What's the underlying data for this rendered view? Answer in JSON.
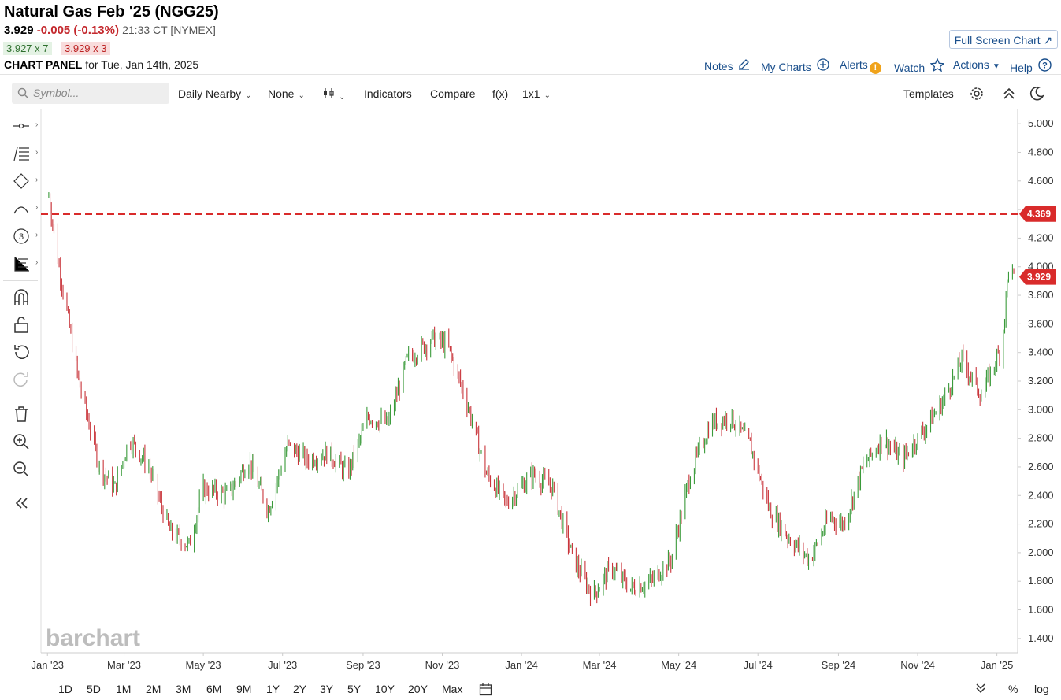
{
  "header": {
    "title": "Natural Gas Feb '25 (NGG25)",
    "last": "3.929",
    "change": "-0.005 (-0.13%)",
    "time": "21:33 CT [NYMEX]",
    "bid": "3.927 x 7",
    "ask": "3.929 x 3",
    "panel_label": "CHART PANEL",
    "panel_date": "for Tue, Jan 14th, 2025",
    "fullscreen": "Full Screen Chart",
    "links": {
      "notes": "Notes",
      "mycharts": "My Charts",
      "alerts": "Alerts",
      "watch": "Watch",
      "actions": "Actions",
      "help": "Help"
    }
  },
  "toolbar": {
    "symbol_placeholder": "Symbol...",
    "period": "Daily Nearby",
    "overlay": "None",
    "indicators": "Indicators",
    "compare": "Compare",
    "fx": "f(x)",
    "layout": "1x1",
    "templates": "Templates"
  },
  "ranges": [
    "1D",
    "5D",
    "1M",
    "2M",
    "3M",
    "6M",
    "9M",
    "1Y",
    "2Y",
    "3Y",
    "5Y",
    "10Y",
    "20Y",
    "Max"
  ],
  "bottom_right": {
    "percent": "%",
    "log": "log"
  },
  "colors": {
    "up": "#3a9a3a",
    "down": "#c9353b",
    "line": "#d92b2b",
    "link": "#1a4f8c"
  },
  "icons": [
    "search-icon",
    "chevron-down-icon",
    "candles-icon",
    "gear-icon",
    "collapse-icon",
    "moon-icon",
    "calendar-icon",
    "magnet-icon",
    "lock-icon",
    "undo-icon",
    "redo-icon",
    "trash-icon",
    "zoom-in-icon",
    "zoom-out-icon",
    "double-left-icon"
  ],
  "chart_data": {
    "type": "line",
    "ylim": [
      1.3,
      5.1
    ],
    "yticks": [
      "5.000",
      "4.800",
      "4.600",
      "4.400",
      "4.200",
      "4.000",
      "3.800",
      "3.600",
      "3.400",
      "3.200",
      "3.000",
      "2.800",
      "2.600",
      "2.400",
      "2.200",
      "2.000",
      "1.800",
      "1.600",
      "1.400"
    ],
    "xticks": [
      "Jan '23",
      "Mar '23",
      "May '23",
      "Jul '23",
      "Sep '23",
      "Nov '23",
      "Jan '24",
      "Mar '24",
      "May '24",
      "Jul '24",
      "Sep '24",
      "Nov '24",
      "Jan '25"
    ],
    "watermark": "barchart",
    "hline": {
      "value": 4.369,
      "label": "4.369"
    },
    "last_label": "3.929",
    "series": [
      {
        "x": [
          "2023-01-01",
          "2023-01-10",
          "2023-01-25",
          "2023-02-10",
          "2023-02-22",
          "2023-03-05",
          "2023-03-20",
          "2023-04-05",
          "2023-04-20",
          "2023-05-01",
          "2023-05-20",
          "2023-06-05",
          "2023-06-20",
          "2023-07-05",
          "2023-07-20",
          "2023-08-05",
          "2023-08-20",
          "2023-09-05",
          "2023-09-20",
          "2023-10-05",
          "2023-10-25",
          "2023-11-05",
          "2023-11-20",
          "2023-12-05",
          "2023-12-20",
          "2024-01-10",
          "2024-01-25",
          "2024-02-10",
          "2024-02-25",
          "2024-03-10",
          "2024-03-25",
          "2024-04-10",
          "2024-04-25",
          "2024-05-10",
          "2024-05-25",
          "2024-06-10",
          "2024-06-25",
          "2024-07-10",
          "2024-07-25",
          "2024-08-10",
          "2024-08-25",
          "2024-09-05",
          "2024-09-20",
          "2024-10-05",
          "2024-10-20",
          "2024-11-05",
          "2024-11-20",
          "2024-12-05",
          "2024-12-20",
          "2025-01-05",
          "2025-01-10",
          "2025-01-14"
        ],
        "values": [
          4.55,
          4.0,
          3.2,
          2.6,
          2.45,
          2.8,
          2.6,
          2.15,
          2.05,
          2.45,
          2.4,
          2.65,
          2.3,
          2.75,
          2.65,
          2.7,
          2.55,
          2.95,
          2.9,
          3.35,
          3.5,
          3.45,
          3.05,
          2.55,
          2.35,
          2.55,
          2.45,
          1.95,
          1.7,
          1.9,
          1.75,
          1.8,
          1.95,
          2.55,
          2.9,
          2.95,
          2.75,
          2.3,
          2.1,
          1.95,
          2.25,
          2.2,
          2.6,
          2.8,
          2.65,
          2.85,
          3.05,
          3.35,
          3.1,
          3.45,
          4.0,
          3.929
        ]
      }
    ]
  }
}
